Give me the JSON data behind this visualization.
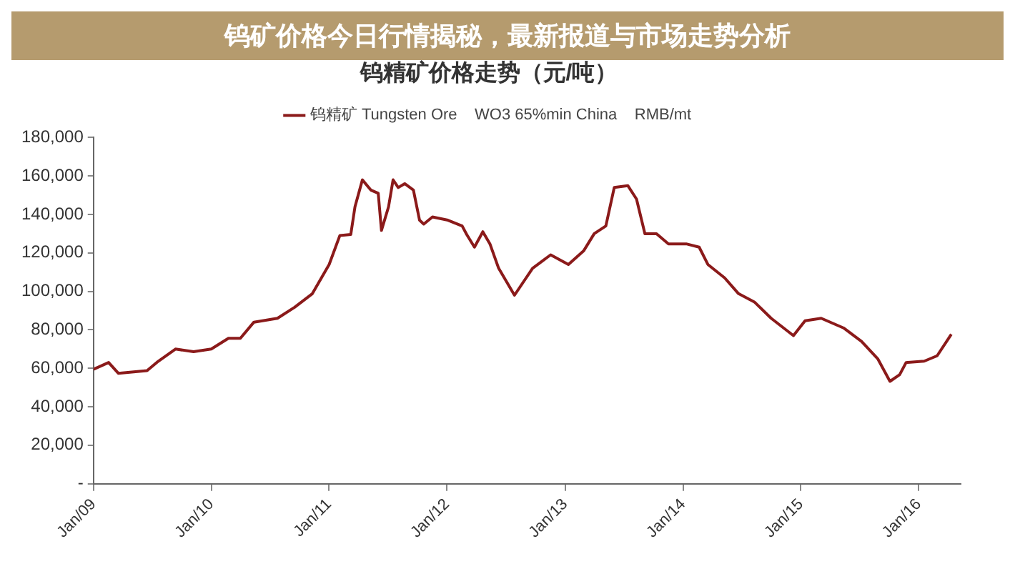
{
  "chart_data": {
    "type": "line",
    "title": "钨精矿价格走势（元/吨）",
    "annotations": [
      "钨矿价格今日行情揭秘，最新报道与市场走势分析"
    ],
    "series": [
      {
        "name": "钨精矿 Tungsten Ore    WO3 65%min China    RMB/mt",
        "color": "#8b1a1a",
        "x": [
          "2009-01-01",
          "2009-02-17",
          "2009-03-19",
          "2009-06-16",
          "2009-07-21",
          "2009-09-12",
          "2009-11-07",
          "2010-01-01",
          "2010-02-23",
          "2010-04-01",
          "2010-05-13",
          "2010-07-25",
          "2010-09-16",
          "2010-11-10",
          "2011-01-01",
          "2011-02-03",
          "2011-03-09",
          "2011-03-22",
          "2011-04-14",
          "2011-05-10",
          "2011-06-02",
          "2011-06-12",
          "2011-07-04",
          "2011-07-18",
          "2011-08-03",
          "2011-08-23",
          "2011-09-19",
          "2011-10-08",
          "2011-10-21",
          "2011-11-17",
          "2012-01-04",
          "2012-02-17",
          "2012-03-02",
          "2012-03-26",
          "2012-04-21",
          "2012-05-13",
          "2012-06-09",
          "2012-07-28",
          "2012-09-22",
          "2012-11-17",
          "2013-01-11",
          "2013-02-27",
          "2013-04-01",
          "2013-05-07",
          "2013-06-02",
          "2013-07-14",
          "2013-08-10",
          "2013-09-05",
          "2013-10-11",
          "2013-11-17",
          "2014-01-11",
          "2014-02-20",
          "2014-03-19",
          "2014-05-10",
          "2014-06-22",
          "2014-08-10",
          "2014-10-01",
          "2014-12-09",
          "2015-01-14",
          "2015-03-05",
          "2015-05-13",
          "2015-07-08",
          "2015-08-27",
          "2015-10-04",
          "2015-11-03",
          "2015-11-23",
          "2016-01-18",
          "2016-02-27",
          "2016-04-11"
        ],
        "values": [
          59500,
          63000,
          57400,
          58800,
          63700,
          70000,
          68600,
          70000,
          75600,
          75600,
          84000,
          86000,
          91700,
          98800,
          114000,
          129000,
          129600,
          144000,
          158000,
          152700,
          151000,
          131700,
          144000,
          158000,
          154000,
          156000,
          152700,
          137000,
          135000,
          138700,
          137000,
          134000,
          129600,
          123000,
          131000,
          124700,
          112000,
          98000,
          112000,
          119000,
          114000,
          121000,
          130000,
          134000,
          154000,
          155000,
          148000,
          130000,
          130000,
          124700,
          124700,
          123000,
          114000,
          107000,
          98800,
          94500,
          86000,
          77000,
          84700,
          86000,
          81000,
          74000,
          65000,
          53200,
          56700,
          63000,
          63700,
          66500,
          77700
        ]
      }
    ],
    "xlim": [
      "2009-01-01",
      "2016-05-10"
    ],
    "xticks": [
      {
        "value": "2009-01-01",
        "label": "Jan/09"
      },
      {
        "value": "2010-01-01",
        "label": "Jan/10"
      },
      {
        "value": "2011-01-01",
        "label": "Jan/11"
      },
      {
        "value": "2012-01-01",
        "label": "Jan/12"
      },
      {
        "value": "2013-01-01",
        "label": "Jan/13"
      },
      {
        "value": "2014-01-01",
        "label": "Jan/14"
      },
      {
        "value": "2015-01-01",
        "label": "Jan/15"
      },
      {
        "value": "2016-01-01",
        "label": "Jan/16"
      }
    ],
    "ylim": [
      0,
      180000
    ],
    "yticks": [
      {
        "value": 0,
        "label": "-"
      },
      {
        "value": 20000,
        "label": "20,000"
      },
      {
        "value": 40000,
        "label": "40,000"
      },
      {
        "value": 60000,
        "label": "60,000"
      },
      {
        "value": 80000,
        "label": "80,000"
      },
      {
        "value": 100000,
        "label": "100,000"
      },
      {
        "value": 120000,
        "label": "120,000"
      },
      {
        "value": 140000,
        "label": "140,000"
      },
      {
        "value": 160000,
        "label": "160,000"
      },
      {
        "value": 180000,
        "label": "180,000"
      }
    ],
    "grid": false,
    "legend": "top",
    "marker": "none",
    "line_style": "solid"
  }
}
